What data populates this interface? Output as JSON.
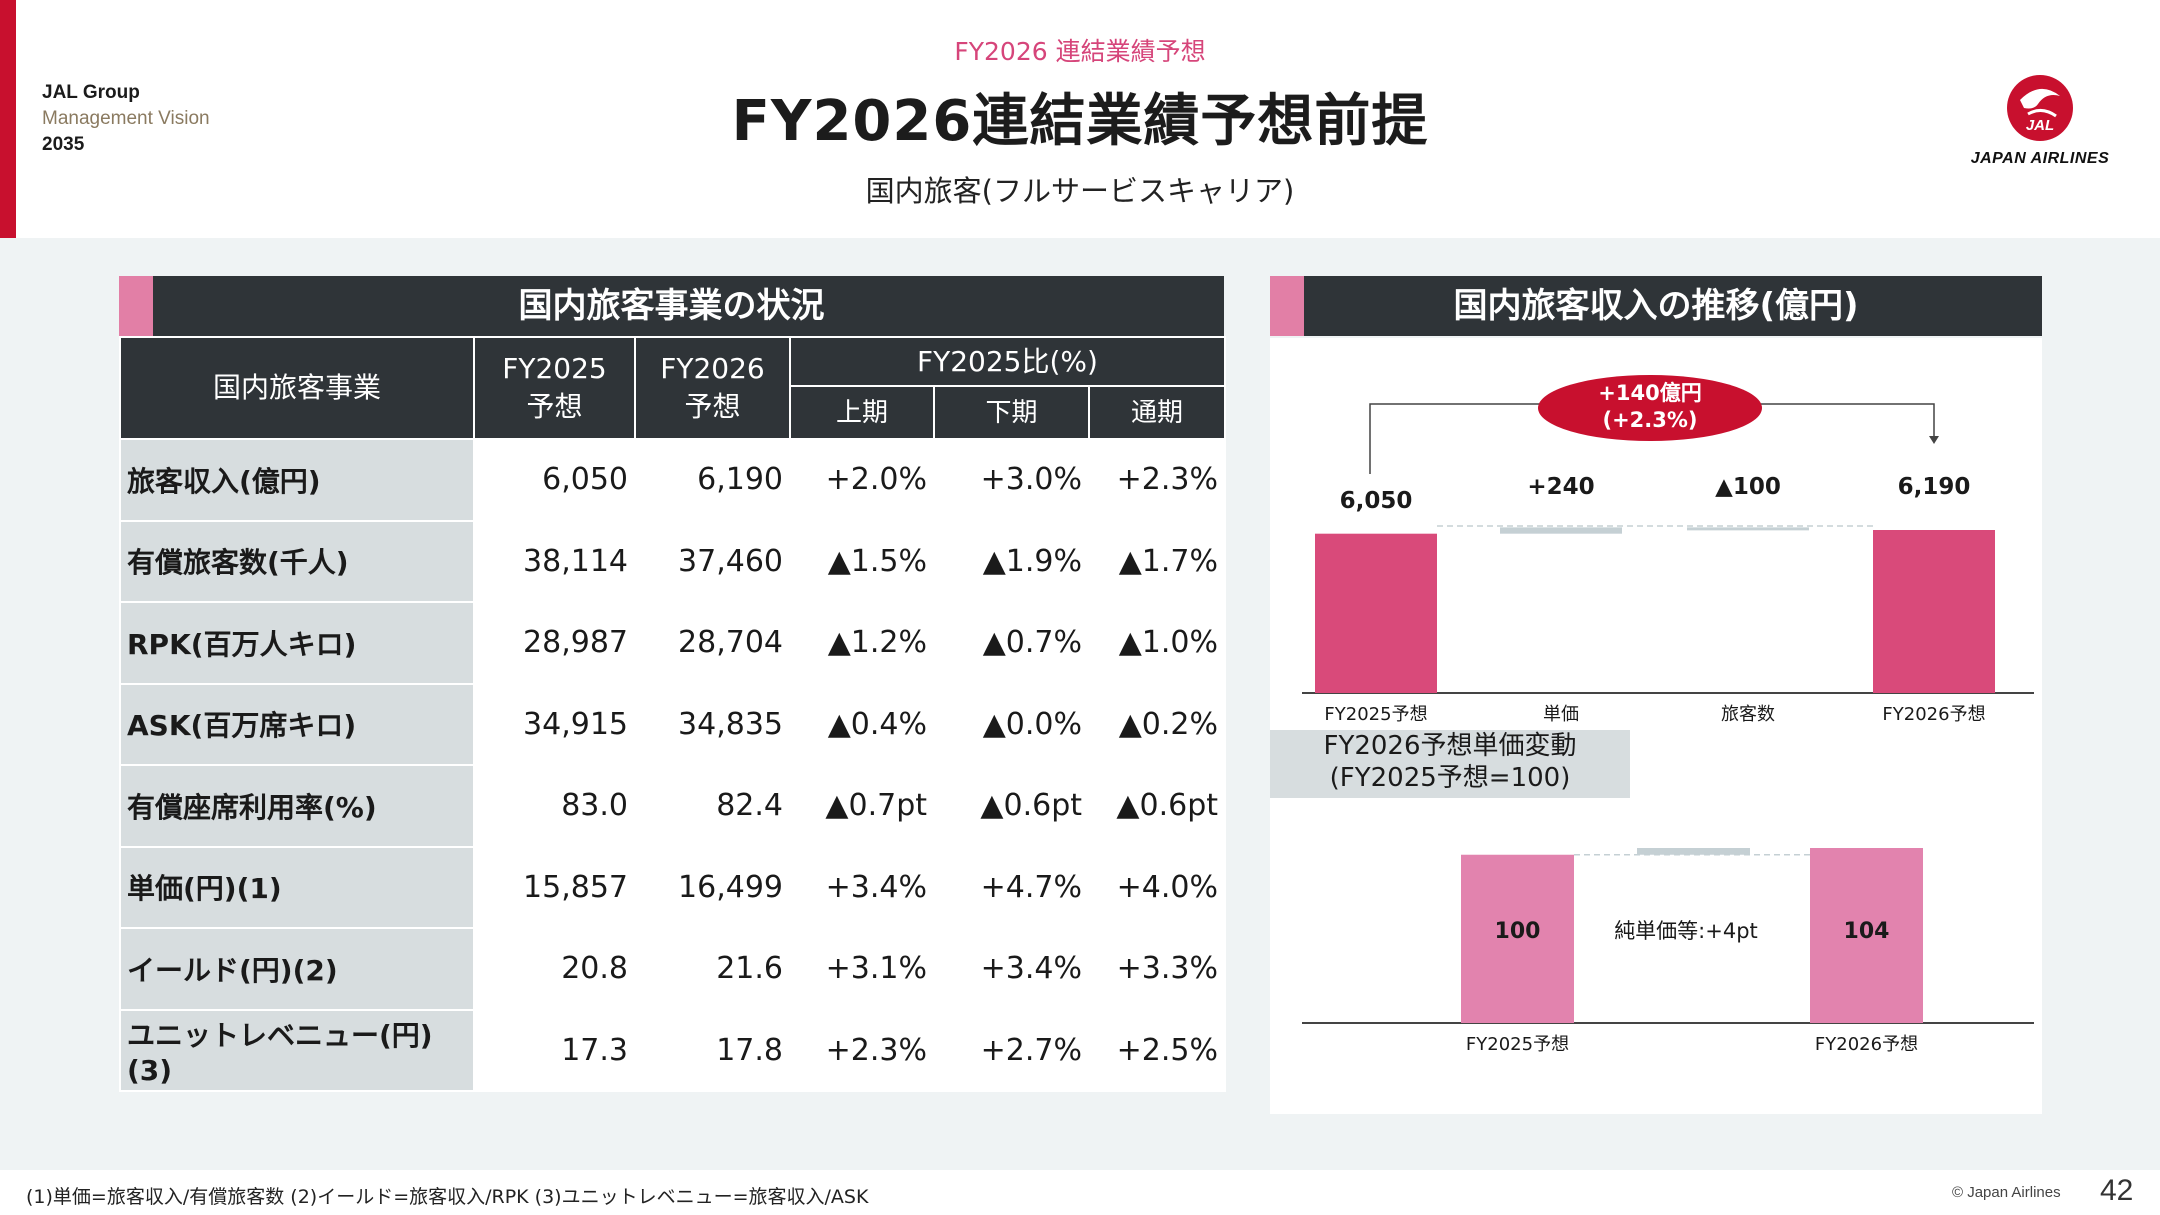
{
  "header": {
    "brand_line1": "JAL Group",
    "brand_line2": "Management Vision",
    "brand_line3": "2035",
    "kicker": "FY2026 連結業績予想",
    "title": "FY2026連結業績予想前提",
    "subtitle": "国内旅客(フルサービスキャリア)",
    "logo_text": "JAPAN AIRLINES",
    "logo_mark_text": "JAL",
    "accent_color": "#c8102e",
    "pink_color": "#d6457a"
  },
  "table": {
    "section_title": "国内旅客事業の状況",
    "corner_label": "国内旅客事業",
    "col_fy2025_l1": "FY2025",
    "col_fy2025_l2": "予想",
    "col_fy2026_l1": "FY2026",
    "col_fy2026_l2": "予想",
    "group_label": "FY2025比(%)",
    "sub_h1": "上期",
    "sub_h2": "下期",
    "sub_full": "通期",
    "rows": [
      {
        "label": "旅客収入(億円)",
        "fy25": "6,050",
        "fy26": "6,190",
        "h1": "+2.0%",
        "h2": "+3.0%",
        "full": "+2.3%"
      },
      {
        "label": "有償旅客数(千人)",
        "fy25": "38,114",
        "fy26": "37,460",
        "h1": "▲1.5%",
        "h2": "▲1.9%",
        "full": "▲1.7%"
      },
      {
        "label": "RPK(百万人キロ)",
        "fy25": "28,987",
        "fy26": "28,704",
        "h1": "▲1.2%",
        "h2": "▲0.7%",
        "full": "▲1.0%"
      },
      {
        "label": "ASK(百万席キロ)",
        "fy25": "34,915",
        "fy26": "34,835",
        "h1": "▲0.4%",
        "h2": "▲0.0%",
        "full": "▲0.2%"
      },
      {
        "label": "有償座席利用率(%)",
        "fy25": "83.0",
        "fy26": "82.4",
        "h1": "▲0.7pt",
        "h2": "▲0.6pt",
        "full": "▲0.6pt"
      },
      {
        "label": "単価(円)(1)",
        "fy25": "15,857",
        "fy26": "16,499",
        "h1": "+3.4%",
        "h2": "+4.7%",
        "full": "+4.0%"
      },
      {
        "label": "イールド(円)(2)",
        "fy25": "20.8",
        "fy26": "21.6",
        "h1": "+3.1%",
        "h2": "+3.4%",
        "full": "+3.3%"
      },
      {
        "label": "ユニットレベニュー(円)(3)",
        "fy25": "17.3",
        "fy26": "17.8",
        "h1": "+2.3%",
        "h2": "+2.7%",
        "full": "+2.5%"
      }
    ]
  },
  "chart_data": [
    {
      "type": "bar",
      "title": "国内旅客収入の推移(億円)",
      "categories": [
        "FY2025予想",
        "単価",
        "旅客数",
        "FY2026予想"
      ],
      "values": [
        6050,
        240,
        -100,
        6190
      ],
      "labels": [
        "6,050",
        "+240",
        "▲100",
        "6,190"
      ],
      "annotation_l1": "+140億円",
      "annotation_l2": "(+2.3%)",
      "colors": {
        "total": "#d94a7a",
        "delta": "#c5d0d4",
        "bubble": "#c8102e"
      }
    },
    {
      "type": "bar",
      "title_l1": "FY2026予想単価変動",
      "title_l2": "(FY2025予想=100)",
      "categories": [
        "FY2025予想",
        "FY2026予想"
      ],
      "values": [
        100,
        104
      ],
      "labels": [
        "100",
        "104"
      ],
      "middle_label": "純単価等:+4pt",
      "colors": {
        "total": "#e283ae",
        "delta": "#c5d0d4"
      }
    }
  ],
  "footer": {
    "footnote": "(1)単価=旅客収入/有償旅客数 (2)イールド=旅客収入/RPK (3)ユニットレベニュー=旅客収入/ASK",
    "copyright": "© Japan Airlines",
    "page": "42"
  }
}
